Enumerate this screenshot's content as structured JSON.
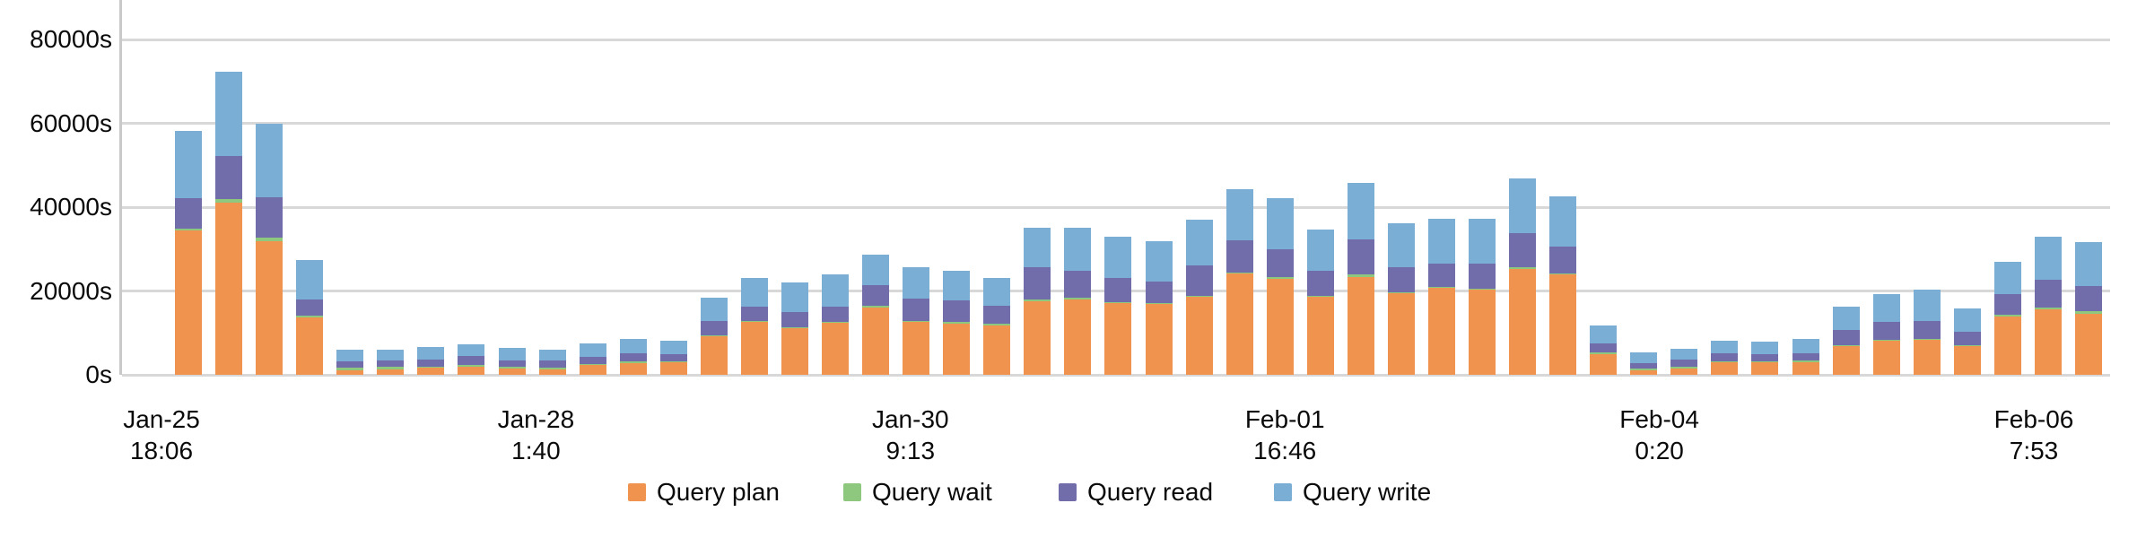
{
  "chart_data": {
    "type": "bar",
    "stacked": true,
    "orientation": "vertical",
    "bar_count": 48,
    "title": "",
    "y_axis": {
      "unit": "s",
      "ticks": [
        "0s",
        "20000s",
        "40000s",
        "60000s",
        "80000s"
      ],
      "tick_values": [
        0,
        20000,
        40000,
        60000,
        80000
      ],
      "max_displayed": 89500,
      "grid": true
    },
    "x_axis": {
      "tick_labels": [
        [
          "Jan-25",
          "18:06"
        ],
        [
          "Jan-28",
          "1:40"
        ],
        [
          "Jan-30",
          "9:13"
        ],
        [
          "Feb-01",
          "16:46"
        ],
        [
          "Feb-04",
          "0:20"
        ],
        [
          "Feb-06",
          "7:53"
        ]
      ]
    },
    "legend": {
      "position": "bottom",
      "items": [
        "Query plan",
        "Query wait",
        "Query read",
        "Query write"
      ]
    },
    "colors": {
      "query_plan": "#EF934F",
      "query_wait": "#8DC87E",
      "query_read": "#716DAB",
      "query_write": "#7BAED4"
    },
    "series": [
      {
        "name": "Query plan",
        "color": "#EF934F",
        "values": [
          34500,
          41200,
          32000,
          13800,
          1050,
          1350,
          1650,
          2000,
          1500,
          1350,
          2300,
          2850,
          3000,
          9200,
          12600,
          11100,
          12400,
          16000,
          12600,
          12200,
          11800,
          17500,
          18000,
          17100,
          16850,
          18600,
          24150,
          22900,
          18600,
          23300,
          19450,
          20750,
          20300,
          25250,
          23900,
          4900,
          1150,
          1500,
          2900,
          2900,
          3100,
          6850,
          8100,
          8350,
          6850,
          13900,
          15600,
          14500
        ]
      },
      {
        "name": "Query wait",
        "color": "#8DC87E",
        "values": [
          500,
          800,
          800,
          400,
          600,
          500,
          350,
          350,
          400,
          450,
          350,
          300,
          250,
          250,
          300,
          300,
          300,
          400,
          300,
          400,
          400,
          500,
          400,
          300,
          300,
          300,
          250,
          400,
          300,
          600,
          300,
          300,
          300,
          400,
          300,
          550,
          350,
          350,
          350,
          350,
          350,
          200,
          250,
          200,
          200,
          400,
          450,
          800
        ]
      },
      {
        "name": "Query read",
        "color": "#716DAB",
        "values": [
          7200,
          10200,
          9700,
          3900,
          1550,
          1500,
          1550,
          2100,
          1600,
          1550,
          1550,
          1900,
          1700,
          3350,
          3350,
          3600,
          3550,
          5000,
          5300,
          5150,
          4250,
          7650,
          6400,
          5700,
          5100,
          7200,
          7700,
          6650,
          6000,
          8400,
          5900,
          5450,
          5900,
          8150,
          6400,
          2100,
          1200,
          1800,
          1800,
          1700,
          1800,
          3650,
          4250,
          4300,
          3200,
          4950,
          6600,
          6000
        ]
      },
      {
        "name": "Query write",
        "color": "#7BAED4",
        "values": [
          16100,
          20200,
          17500,
          9400,
          2700,
          2700,
          3000,
          2850,
          3000,
          2700,
          3300,
          3550,
          3250,
          5600,
          6850,
          7000,
          7750,
          7300,
          7500,
          7050,
          6650,
          9400,
          10250,
          9800,
          9600,
          10900,
          12150,
          12150,
          9750,
          13500,
          10500,
          10700,
          10700,
          13050,
          11950,
          4250,
          2700,
          2600,
          3000,
          3000,
          3400,
          5550,
          6650,
          7450,
          5600,
          7700,
          10300,
          10300
        ]
      }
    ]
  }
}
